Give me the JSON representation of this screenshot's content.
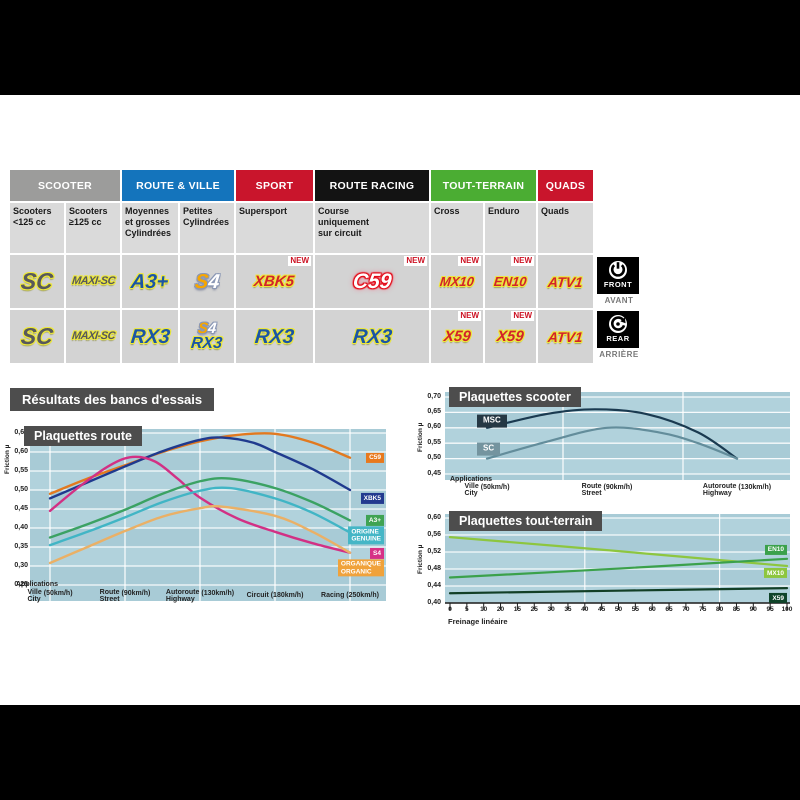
{
  "page": {
    "results_title": "Résultats des bancs d'essais"
  },
  "table": {
    "new_label": "NEW",
    "categories": [
      {
        "label": "SCOOTER",
        "color": "#9c9c9b",
        "span": 2
      },
      {
        "label": "ROUTE & VILLE",
        "color": "#1474bc",
        "span": 2
      },
      {
        "label": "SPORT",
        "color": "#c9152c",
        "span": 1
      },
      {
        "label": "ROUTE RACING",
        "color": "#131313",
        "span": 1
      },
      {
        "label": "TOUT-TERRAIN",
        "color": "#4bad33",
        "span": 2
      },
      {
        "label": "QUADS",
        "color": "#c9152c",
        "span": 1
      }
    ],
    "subheaders": [
      "Scooters\n<125 cc",
      "Scooters\n≥125 cc",
      "Moyennes\net grosses\nCylindrées",
      "Petites\nCylindrées",
      "Supersport",
      "Course\nuniquement\nsur circuit",
      "Cross",
      "Enduro",
      "Quads"
    ],
    "rows": {
      "front": [
        {
          "logos": [
            {
              "text": "SC",
              "style": "sc"
            }
          ]
        },
        {
          "logos": [
            {
              "text": "MAXI-SC",
              "style": "maxisc"
            }
          ]
        },
        {
          "logos": [
            {
              "text": "A3+",
              "style": "a3"
            }
          ]
        },
        {
          "logos": [
            {
              "text": "S4",
              "style": "s4"
            }
          ]
        },
        {
          "logos": [
            {
              "text": "XBK5",
              "style": "xbk5"
            }
          ],
          "new": true
        },
        {
          "logos": [
            {
              "text": "C59",
              "style": "c59"
            }
          ],
          "new": true
        },
        {
          "logos": [
            {
              "text": "MX10",
              "style": "mx10"
            }
          ],
          "new": true
        },
        {
          "logos": [
            {
              "text": "EN10",
              "style": "en10"
            }
          ],
          "new": true
        },
        {
          "logos": [
            {
              "text": "ATV1",
              "style": "atv1"
            }
          ]
        }
      ],
      "rear": [
        {
          "logos": [
            {
              "text": "SC",
              "style": "sc"
            }
          ]
        },
        {
          "logos": [
            {
              "text": "MAXI-SC",
              "style": "maxisc"
            }
          ]
        },
        {
          "logos": [
            {
              "text": "RX3",
              "style": "rx3"
            }
          ]
        },
        {
          "logos": [
            {
              "text": "S4",
              "style": "s4small"
            },
            {
              "text": "RX3",
              "style": "rx3small"
            }
          ]
        },
        {
          "logos": [
            {
              "text": "RX3",
              "style": "rx3"
            }
          ]
        },
        {
          "logos": [
            {
              "text": "RX3",
              "style": "rx3"
            }
          ]
        },
        {
          "logos": [
            {
              "text": "X59",
              "style": "x59"
            }
          ],
          "new": true
        },
        {
          "logos": [
            {
              "text": "X59",
              "style": "x59"
            }
          ],
          "new": true
        },
        {
          "logos": [
            {
              "text": "ATV1",
              "style": "atv1"
            }
          ]
        }
      ]
    }
  },
  "axle": {
    "front": {
      "label": "FRONT",
      "sub": "AVANT"
    },
    "rear": {
      "label": "REAR",
      "sub": "ARRIÈRE"
    }
  },
  "chart_data": [
    {
      "id": "route",
      "type": "line",
      "title": "Plaquettes route",
      "ylabel": "Friction µ",
      "xlabel": "Applications",
      "ylim": [
        0.25,
        0.65
      ],
      "yticks": [
        "0,65",
        "0,60",
        "0,55",
        "0,50",
        "0,45",
        "0,40",
        "0,35",
        "0,30",
        "0,25"
      ],
      "x_categories": [
        {
          "fr": "Ville",
          "en": "City",
          "speed": "(50km/h)"
        },
        {
          "fr": "Route",
          "en": "Street",
          "speed": "(90km/h)"
        },
        {
          "fr": "Autoroute",
          "en": "Highway",
          "speed": "(130km/h)"
        },
        {
          "label": "Circuit (180km/h)"
        },
        {
          "label": "Racing (250km/h)"
        }
      ],
      "series": [
        {
          "name": "C59",
          "color": "#e2791f",
          "badge": [
            "C59"
          ],
          "badge_color": "#e8791d",
          "badge_value": 0.585,
          "points": [
            [
              0,
              0.49
            ],
            [
              0.5,
              0.53
            ],
            [
              1,
              0.565
            ],
            [
              1.5,
              0.6
            ],
            [
              2,
              0.628
            ],
            [
              2.5,
              0.645
            ],
            [
              3,
              0.648
            ],
            [
              3.5,
              0.625
            ],
            [
              4,
              0.585
            ]
          ]
        },
        {
          "name": "XBK5",
          "color": "#1f3a8e",
          "badge": [
            "XBK5"
          ],
          "badge_color": "#233a8f",
          "badge_value": 0.478,
          "points": [
            [
              0,
              0.478
            ],
            [
              0.5,
              0.52
            ],
            [
              1,
              0.562
            ],
            [
              1.5,
              0.602
            ],
            [
              2,
              0.632
            ],
            [
              2.3,
              0.638
            ],
            [
              2.7,
              0.625
            ],
            [
              3,
              0.6
            ],
            [
              3.5,
              0.555
            ],
            [
              4,
              0.5
            ]
          ]
        },
        {
          "name": "S4",
          "color": "#d23084",
          "badge": [
            "S4"
          ],
          "badge_color": "#d63186",
          "badge_value": 0.333,
          "points": [
            [
              0,
              0.445
            ],
            [
              0.4,
              0.51
            ],
            [
              0.8,
              0.565
            ],
            [
              1.1,
              0.587
            ],
            [
              1.4,
              0.575
            ],
            [
              1.7,
              0.53
            ],
            [
              2,
              0.48
            ],
            [
              2.5,
              0.425
            ],
            [
              3,
              0.39
            ],
            [
              3.5,
              0.36
            ],
            [
              4,
              0.335
            ]
          ]
        },
        {
          "name": "A3+",
          "color": "#3ba263",
          "badge": [
            "A3+"
          ],
          "badge_color": "#3fa353",
          "badge_value": 0.42,
          "points": [
            [
              0,
              0.375
            ],
            [
              0.5,
              0.41
            ],
            [
              1,
              0.448
            ],
            [
              1.5,
              0.49
            ],
            [
              2,
              0.523
            ],
            [
              2.4,
              0.53
            ],
            [
              3,
              0.505
            ],
            [
              3.5,
              0.468
            ],
            [
              4,
              0.42
            ]
          ]
        },
        {
          "name": "ORIGINE",
          "color": "#41b5c5",
          "badge": [
            "ORIGINE",
            "GENUINE"
          ],
          "badge_color": "#45b6c6",
          "badge_value": 0.381,
          "points": [
            [
              0,
              0.355
            ],
            [
              0.5,
              0.39
            ],
            [
              1,
              0.428
            ],
            [
              1.5,
              0.468
            ],
            [
              2,
              0.498
            ],
            [
              2.4,
              0.505
            ],
            [
              3,
              0.478
            ],
            [
              3.5,
              0.44
            ],
            [
              4,
              0.388
            ]
          ]
        },
        {
          "name": "ORGANIQUE",
          "color": "#eab066",
          "badge": [
            "ORGANIQUE",
            "ORGANIC"
          ],
          "badge_color": "#f0a23b",
          "badge_value": 0.295,
          "points": [
            [
              0,
              0.308
            ],
            [
              0.5,
              0.35
            ],
            [
              1,
              0.392
            ],
            [
              1.5,
              0.43
            ],
            [
              2,
              0.452
            ],
            [
              2.3,
              0.456
            ],
            [
              3,
              0.432
            ],
            [
              3.5,
              0.39
            ],
            [
              4,
              0.335
            ]
          ]
        }
      ]
    },
    {
      "id": "scooter",
      "type": "line",
      "title": "Plaquettes scooter",
      "ylabel": "Friction µ",
      "xlabel": "Applications",
      "ylim": [
        0.45,
        0.7
      ],
      "yticks": [
        "0,70",
        "0,65",
        "0,60",
        "0,55",
        "0,50",
        "0,45"
      ],
      "x_categories": [
        {
          "fr": "Ville",
          "en": "City",
          "speed": "(50km/h)"
        },
        {
          "fr": "Route",
          "en": "Street",
          "speed": "(90km/h)"
        },
        {
          "fr": "Autoroute",
          "en": "Highway",
          "speed": "(130km/h)"
        }
      ],
      "series": [
        {
          "name": "MSC",
          "color": "#1a3a50",
          "badge": [
            "MSC"
          ],
          "badge_color": "#253844",
          "badge_pos": [
            32,
            0.622
          ],
          "points": [
            [
              0,
              0.6
            ],
            [
              0.5,
              0.645
            ],
            [
              0.9,
              0.66
            ],
            [
              1.3,
              0.645
            ],
            [
              1.7,
              0.585
            ],
            [
              2,
              0.5
            ]
          ]
        },
        {
          "name": "SC",
          "color": "#638d9b",
          "badge": [
            "SC"
          ],
          "badge_color": "#74949f",
          "badge_pos": [
            32,
            0.532
          ],
          "points": [
            [
              0,
              0.5
            ],
            [
              0.5,
              0.555
            ],
            [
              1,
              0.6
            ],
            [
              1.4,
              0.585
            ],
            [
              1.7,
              0.55
            ],
            [
              2,
              0.5
            ]
          ]
        }
      ]
    },
    {
      "id": "terrain",
      "type": "line",
      "title": "Plaquettes tout-terrain",
      "ylabel": "Friction µ",
      "xlabel": "Freinage linéaire",
      "ylim": [
        0.4,
        0.6
      ],
      "yticks": [
        "0,60",
        "0,56",
        "0,52",
        "0,48",
        "0,44",
        "0,40"
      ],
      "xticks": [
        "0",
        "5",
        "10",
        "20",
        "15",
        "25",
        "30",
        "35",
        "40",
        "45",
        "50",
        "55",
        "60",
        "65",
        "70",
        "75",
        "80",
        "85",
        "90",
        "95",
        "100"
      ],
      "xrange": [
        0,
        100
      ],
      "series": [
        {
          "name": "MX10",
          "color": "#8dc63f",
          "badge": [
            "MX10"
          ],
          "badge_color": "#8dc63f",
          "badge_value": 0.47,
          "points": [
            [
              0,
              0.555
            ],
            [
              50,
              0.522
            ],
            [
              100,
              0.487
            ]
          ]
        },
        {
          "name": "EN10",
          "color": "#3ba14b",
          "badge": [
            "EN10"
          ],
          "badge_color": "#3ba14b",
          "badge_value": 0.525,
          "points": [
            [
              0,
              0.46
            ],
            [
              50,
              0.481
            ],
            [
              100,
              0.504
            ]
          ]
        },
        {
          "name": "X59",
          "color": "#123f26",
          "badge": [
            "X59"
          ],
          "badge_color": "#0f4429",
          "badge_value": 0.411,
          "points": [
            [
              0,
              0.423
            ],
            [
              50,
              0.429
            ],
            [
              100,
              0.435
            ]
          ]
        }
      ]
    }
  ]
}
